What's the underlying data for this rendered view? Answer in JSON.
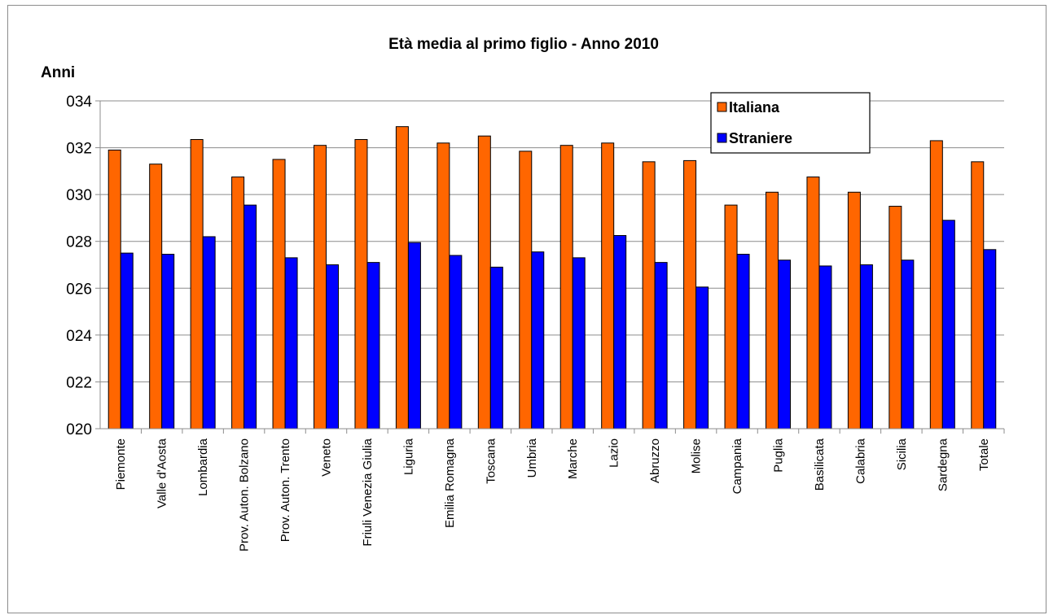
{
  "chart_data": {
    "type": "bar",
    "title": "Età media al primo figlio - Anno 2010",
    "ylabel": "Anni",
    "xlabel": "",
    "ylim": [
      20,
      34
    ],
    "ytick_step": 2,
    "ytick_labels": [
      "020",
      "022",
      "024",
      "026",
      "028",
      "030",
      "032",
      "034"
    ],
    "grid": true,
    "legend_position": "top-right",
    "categories": [
      "Piemonte",
      "Valle d'Aosta",
      "Lombardia",
      "Prov. Auton. Bolzano",
      "Prov. Auton. Trento",
      "Veneto",
      "Friuli Venezia Giulia",
      "Liguria",
      "Emilia Romagna",
      "Toscana",
      "Umbria",
      "Marche",
      "Lazio",
      "Abruzzo",
      "Molise",
      "Campania",
      "Puglia",
      "Basilicata",
      "Calabria",
      "Sicilia",
      "Sardegna",
      "Totale"
    ],
    "series": [
      {
        "name": "Italiana",
        "color": "#ff6600",
        "values": [
          31.9,
          31.3,
          32.35,
          30.75,
          31.5,
          32.1,
          32.35,
          32.9,
          32.2,
          32.5,
          31.85,
          32.1,
          32.2,
          31.4,
          31.45,
          29.55,
          30.1,
          30.75,
          30.1,
          29.5,
          32.3,
          31.4
        ]
      },
      {
        "name": "Straniere",
        "color": "#0000ff",
        "values": [
          27.5,
          27.45,
          28.2,
          29.55,
          27.3,
          27.0,
          27.1,
          27.95,
          27.4,
          26.9,
          27.55,
          27.3,
          28.25,
          27.1,
          26.05,
          27.45,
          27.2,
          26.95,
          27.0,
          27.2,
          28.9,
          27.65
        ]
      }
    ]
  }
}
